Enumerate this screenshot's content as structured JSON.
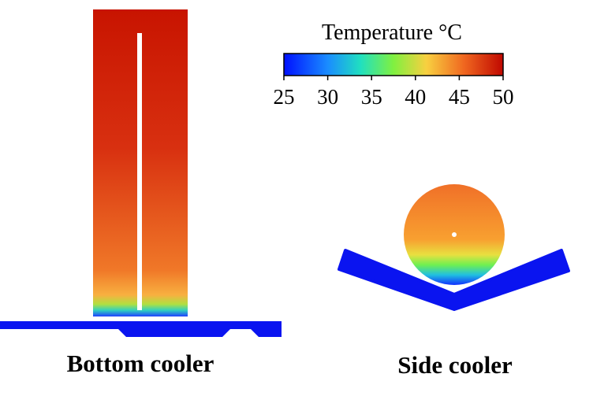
{
  "colorbar": {
    "title": "Temperature °C",
    "range": [
      25,
      50
    ],
    "ticks": [
      25,
      30,
      35,
      40,
      45,
      50
    ]
  },
  "labels": {
    "left": "Bottom cooler",
    "right": "Side cooler"
  }
}
